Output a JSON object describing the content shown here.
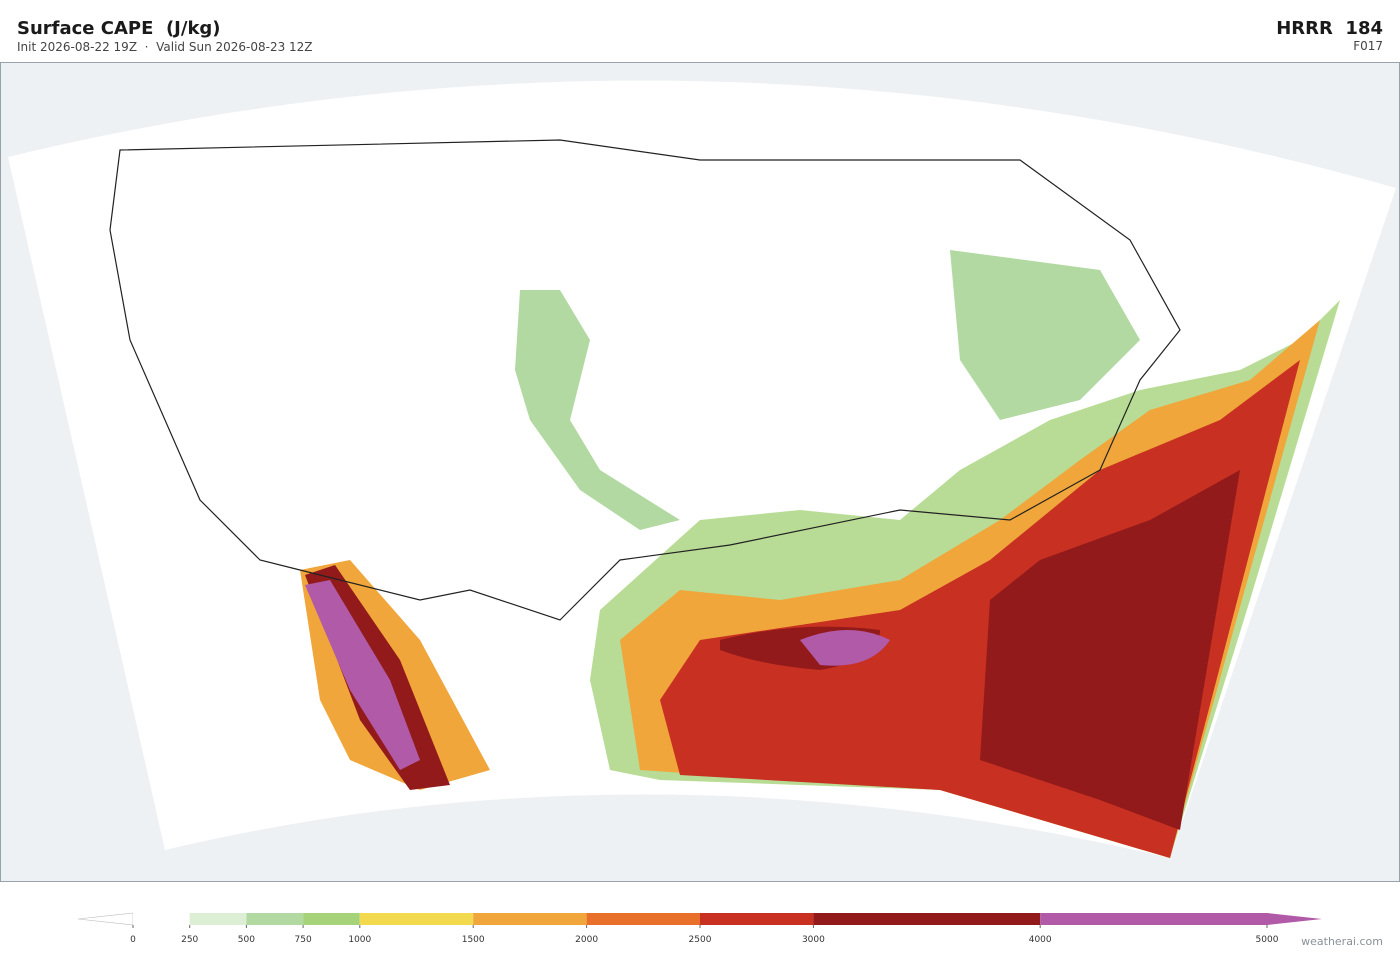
{
  "header": {
    "title": "Surface CAPE  (J/kg)",
    "subtitle": "Init 2026-08-22 19Z  ·  Valid Sun 2026-08-23 12Z",
    "model": "HRRR  184",
    "forecast_hour": "F017"
  },
  "colorbar": {
    "ticks": [
      0,
      250,
      500,
      750,
      1000,
      1500,
      2000,
      2500,
      3000,
      4000,
      5000
    ],
    "colors": [
      "#ffffff",
      "#dcefd5",
      "#b2d9a2",
      "#a6d37a",
      "#f2d94e",
      "#f0a63a",
      "#e8702a",
      "#c83022",
      "#921a1a",
      "#b05aa8"
    ]
  },
  "footer": {
    "attribution": "weatherai.com"
  }
}
